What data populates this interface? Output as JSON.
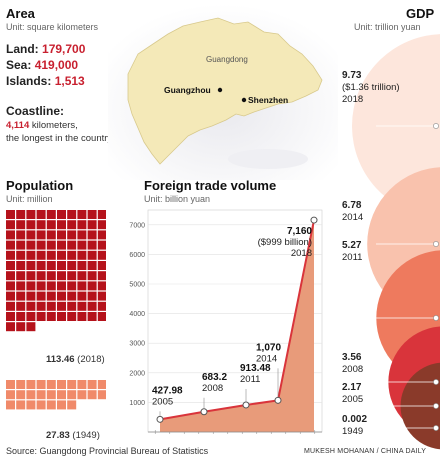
{
  "area": {
    "title": "Area",
    "unit": "Unit: square kilometers",
    "land_label": "Land:",
    "land_value": "179,700",
    "sea_label": "Sea:",
    "sea_value": "419,000",
    "islands_label": "Islands:",
    "islands_value": "1,513"
  },
  "coastline": {
    "title": "Coastline:",
    "value": "4,114",
    "text1": " kilometers,",
    "text2": "the longest in the country"
  },
  "map": {
    "province": "Guangdong",
    "city1": "Guangzhou",
    "city2": "Shenzhen"
  },
  "population": {
    "title": "Population",
    "unit": "Unit: million",
    "v2018": "113.46",
    "y2018": " (2018)",
    "v1949": "27.83",
    "y1949": " (1949)",
    "color_2018": "#b5121b",
    "color_1949": "#f08a6a"
  },
  "gdp": {
    "title": "GDP",
    "unit": "Unit: trillion yuan",
    "items": [
      {
        "value": "9.73",
        "note": "($1.36 trillion)",
        "year": "2018"
      },
      {
        "value": "6.78",
        "note": "",
        "year": "2014"
      },
      {
        "value": "5.27",
        "note": "",
        "year": "2011"
      },
      {
        "value": "3.56",
        "note": "",
        "year": "2008"
      },
      {
        "value": "2.17",
        "note": "",
        "year": "2005"
      },
      {
        "value": "0.002",
        "note": "",
        "year": "1949"
      }
    ]
  },
  "footer": {
    "source": "Source: Guangdong Provincial Bureau of Statistics",
    "credit": "MUKESH MOHANAN / CHINA DAILY"
  },
  "chart_data": {
    "type": "area",
    "title": "Foreign trade volume",
    "subtitle": "Unit: billion yuan",
    "xlabel": "",
    "ylabel": "",
    "ylim": [
      0,
      7500
    ],
    "yticks": [
      1000,
      2000,
      3000,
      4000,
      5000,
      6000,
      7000
    ],
    "grid": true,
    "points": [
      {
        "year": "2005",
        "value": 427.98,
        "label": "427.98"
      },
      {
        "year": "2008",
        "value": 683.2,
        "label": "683.2"
      },
      {
        "year": "2011",
        "value": 913.48,
        "label": "913.48"
      },
      {
        "year": "2014",
        "value": 1070,
        "label": "1,070"
      },
      {
        "year": "2018",
        "value": 7160,
        "label": "7,160",
        "note": "($999 billion)"
      }
    ],
    "colors": {
      "line": "#d9343b",
      "fill": "#e89b7a"
    }
  }
}
